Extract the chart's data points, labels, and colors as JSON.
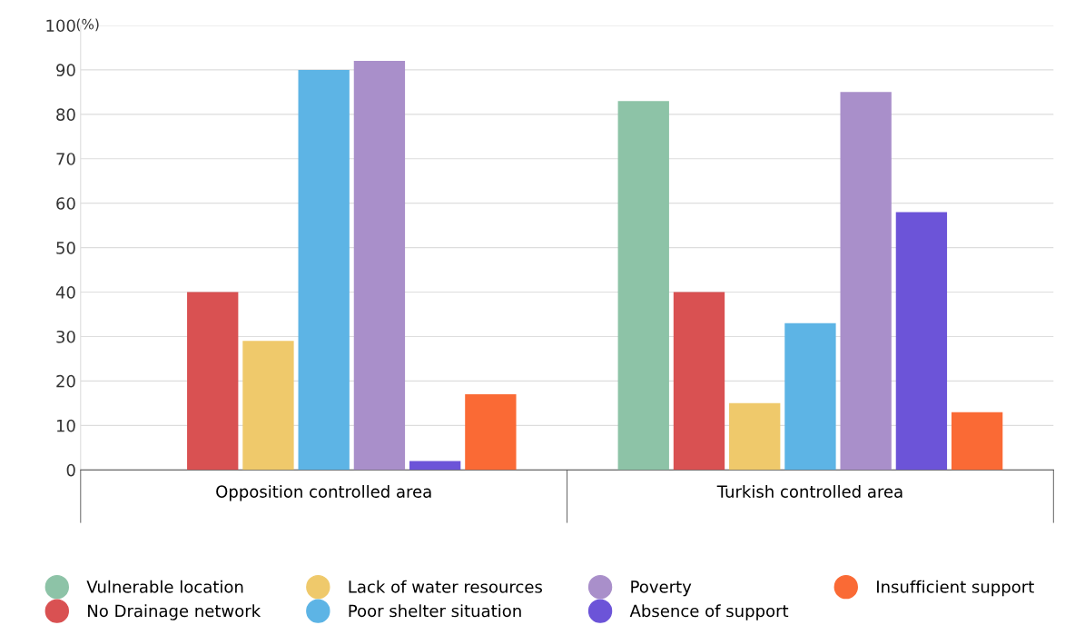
{
  "chart_data": {
    "type": "bar",
    "ylabel": "(%)",
    "categories": [
      "Opposition controlled area",
      "Turkish controlled area"
    ],
    "series": [
      {
        "name": "Vulnerable location",
        "color": "#8dc3a7",
        "values": [
          null,
          83
        ]
      },
      {
        "name": "No Drainage network",
        "color": "#d95152",
        "values": [
          40,
          40
        ]
      },
      {
        "name": "Lack of water resources",
        "color": "#efc96b",
        "values": [
          29,
          15
        ]
      },
      {
        "name": "Poor shelter situation",
        "color": "#5db4e5",
        "values": [
          90,
          33
        ]
      },
      {
        "name": "Poverty",
        "color": "#a98fca",
        "values": [
          92,
          85
        ]
      },
      {
        "name": "Absence of support",
        "color": "#6c54d8",
        "values": [
          2,
          58
        ]
      },
      {
        "name": "Insufficient support",
        "color": "#fa6a35",
        "values": [
          17,
          13
        ]
      }
    ],
    "ylim": [
      0,
      100
    ],
    "yticks": [
      0,
      10,
      20,
      30,
      40,
      50,
      60,
      70,
      80,
      90,
      100
    ],
    "grid": "y",
    "legend": "bottom",
    "marker": "circle"
  }
}
